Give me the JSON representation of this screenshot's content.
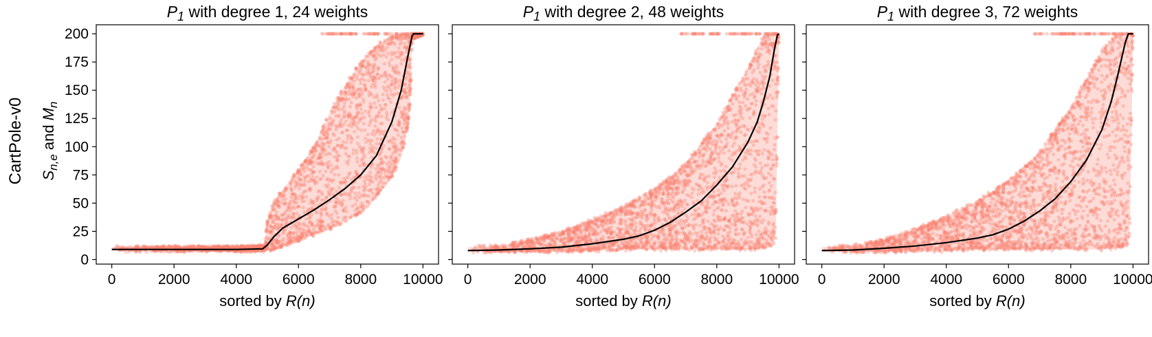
{
  "figure": {
    "row_label": "CartPole-v0",
    "ylabel": {
      "main": "S",
      "sub1": "n,e",
      "mid": " and ",
      "main2": "M",
      "sub2": "n"
    },
    "xlabel": {
      "prefix": "sorted by ",
      "italic": "R(n)"
    }
  },
  "colors": {
    "scatter": "#fa8070",
    "band": "#fbc0b8",
    "median_line": "#000000"
  },
  "chart_data": [
    {
      "type": "scatter",
      "title": {
        "italic_main": "P",
        "italic_sub": "1",
        "rest": " with degree 1, 24 weights"
      },
      "xlim": [
        -500,
        10500
      ],
      "ylim": [
        -4,
        208
      ],
      "xticks": [
        "0",
        "2000",
        "4000",
        "6000",
        "8000",
        "10000"
      ],
      "yticks": [
        "0",
        "25",
        "50",
        "75",
        "100",
        "125",
        "150",
        "175",
        "200"
      ],
      "series": [
        {
          "kind": "median_line",
          "x": [
            0,
            1000,
            2000,
            3000,
            4000,
            4850,
            5000,
            5200,
            5500,
            6000,
            6500,
            7000,
            7500,
            8000,
            8500,
            9000,
            9300,
            9500,
            9650,
            9700,
            10000
          ],
          "y": [
            9,
            9,
            9,
            9,
            9,
            9.5,
            13,
            20,
            28,
            36,
            44,
            53,
            63,
            75,
            92,
            122,
            150,
            178,
            198,
            200,
            200
          ]
        },
        {
          "kind": "scatter_band_low",
          "x": [
            0,
            1000,
            2000,
            3000,
            4000,
            4900,
            5000,
            5300,
            5600,
            6000,
            6500,
            7000,
            7500,
            8000,
            8500,
            9000,
            9300,
            9500,
            9600,
            9650,
            10000
          ],
          "y": [
            8,
            8,
            8,
            8,
            8,
            8,
            8,
            9,
            12,
            17,
            22,
            27,
            33,
            42,
            55,
            72,
            90,
            115,
            140,
            196,
            200
          ]
        },
        {
          "kind": "scatter_band_high",
          "x": [
            0,
            1000,
            2000,
            3000,
            4000,
            4900,
            5000,
            5200,
            5500,
            6000,
            6500,
            7000,
            7500,
            8000,
            8500,
            9000,
            9300,
            9600,
            10000
          ],
          "y": [
            11,
            11,
            11,
            11,
            11,
            12,
            35,
            50,
            62,
            80,
            100,
            130,
            155,
            175,
            190,
            198,
            200,
            200,
            200
          ]
        }
      ]
    },
    {
      "type": "scatter",
      "title": {
        "italic_main": "P",
        "italic_sub": "1",
        "rest": " with degree 2, 48 weights"
      },
      "xlim": [
        -500,
        10500
      ],
      "ylim": [
        -4,
        208
      ],
      "xticks": [
        "0",
        "2000",
        "4000",
        "6000",
        "8000",
        "10000"
      ],
      "yticks": [
        "0",
        "25",
        "50",
        "75",
        "100",
        "125",
        "150",
        "175",
        "200"
      ],
      "series": [
        {
          "kind": "median_line",
          "x": [
            0,
            1000,
            2000,
            3000,
            4000,
            5000,
            5500,
            6000,
            6500,
            7000,
            7500,
            8000,
            8500,
            9000,
            9300,
            9500,
            9700,
            9850,
            9950,
            10000
          ],
          "y": [
            8,
            8.5,
            9.5,
            11,
            14,
            18,
            21,
            26,
            33,
            42,
            52,
            66,
            82,
            104,
            122,
            140,
            162,
            186,
            199,
            200
          ]
        },
        {
          "kind": "scatter_band_low",
          "x": [
            0,
            1000,
            2000,
            3000,
            4000,
            5000,
            6000,
            7000,
            8000,
            9000,
            9500,
            9800,
            9900,
            10000
          ],
          "y": [
            7,
            7,
            7,
            7,
            8,
            9,
            9,
            9,
            9,
            9,
            10,
            12,
            20,
            200
          ]
        },
        {
          "kind": "scatter_band_high",
          "x": [
            0,
            1000,
            2000,
            3000,
            4000,
            5000,
            6000,
            7000,
            8000,
            9000,
            9500,
            10000
          ],
          "y": [
            11,
            12,
            17,
            25,
            35,
            47,
            62,
            85,
            120,
            170,
            198,
            200
          ]
        }
      ]
    },
    {
      "type": "scatter",
      "title": {
        "italic_main": "P",
        "italic_sub": "1",
        "rest": " with degree 3, 72 weights"
      },
      "xlim": [
        -500,
        10500
      ],
      "ylim": [
        -4,
        208
      ],
      "xticks": [
        "0",
        "2000",
        "4000",
        "6000",
        "8000",
        "10000"
      ],
      "yticks": [
        "0",
        "25",
        "50",
        "75",
        "100",
        "125",
        "150",
        "175",
        "200"
      ],
      "series": [
        {
          "kind": "median_line",
          "x": [
            0,
            1000,
            2000,
            3000,
            4000,
            5000,
            5500,
            6000,
            6500,
            7000,
            7500,
            8000,
            8500,
            9000,
            9300,
            9500,
            9650,
            9750,
            9850,
            10000
          ],
          "y": [
            8,
            8.5,
            10,
            12,
            15,
            19,
            22,
            27,
            34,
            43,
            54,
            69,
            88,
            115,
            140,
            162,
            180,
            192,
            200,
            200
          ]
        },
        {
          "kind": "scatter_band_low",
          "x": [
            0,
            1000,
            2000,
            3000,
            4000,
            5000,
            6000,
            7000,
            8000,
            9000,
            9500,
            9800,
            9900,
            10000
          ],
          "y": [
            7,
            7,
            7,
            7,
            8,
            9,
            9,
            9,
            9,
            9,
            10,
            12,
            20,
            200
          ]
        },
        {
          "kind": "scatter_band_high",
          "x": [
            0,
            1000,
            2000,
            3000,
            4000,
            5000,
            6000,
            7000,
            8000,
            9000,
            9500,
            10000
          ],
          "y": [
            11,
            12,
            18,
            27,
            38,
            52,
            70,
            95,
            135,
            185,
            200,
            200
          ]
        }
      ]
    }
  ]
}
